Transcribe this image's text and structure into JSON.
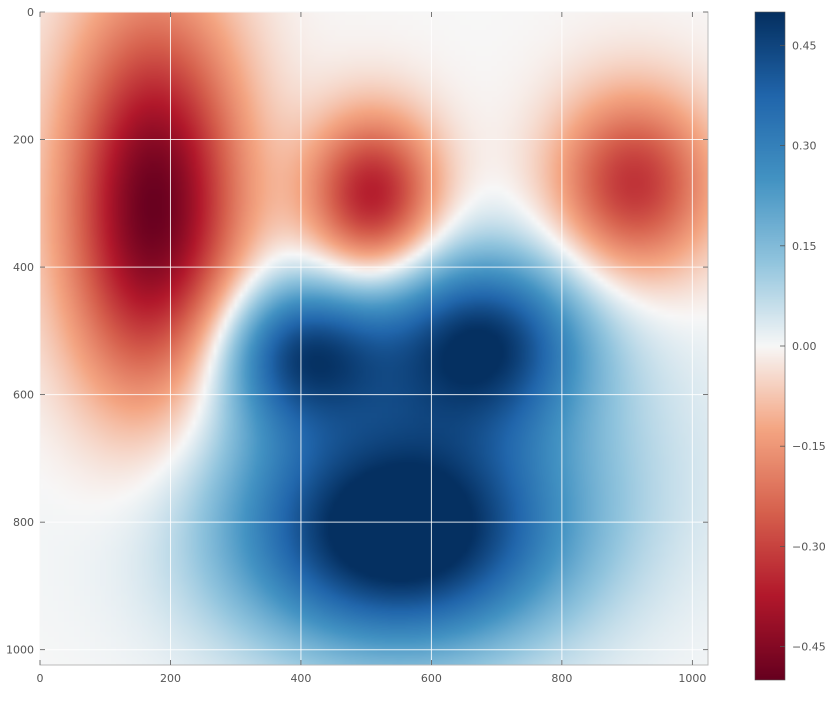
{
  "chart_data": {
    "type": "heatmap",
    "title": "",
    "xlabel": "",
    "ylabel": "",
    "xlim": [
      0,
      1024
    ],
    "ylim": [
      1024,
      0
    ],
    "x_ticks": [
      0,
      200,
      400,
      600,
      800,
      1000
    ],
    "y_ticks": [
      0,
      200,
      400,
      600,
      800,
      1000
    ],
    "grid": true,
    "colormap": "RdBu",
    "colorbar": {
      "min": -0.5,
      "max": 0.5,
      "ticks": [
        0.45,
        0.3,
        0.15,
        0.0,
        -0.15,
        -0.3,
        -0.45
      ],
      "tick_labels": [
        "0.45",
        "0.30",
        "0.15",
        "0.00",
        "−0.15",
        "−0.30",
        "−0.45"
      ]
    },
    "features": [
      {
        "kind": "min",
        "x": 175,
        "y": 310,
        "value": -0.5,
        "sx": 95,
        "sy": 220
      },
      {
        "kind": "min",
        "x": 510,
        "y": 290,
        "value": -0.38,
        "sx": 70,
        "sy": 90
      },
      {
        "kind": "min",
        "x": 910,
        "y": 270,
        "value": -0.33,
        "sx": 85,
        "sy": 100
      },
      {
        "kind": "max",
        "x": 400,
        "y": 530,
        "value": 0.36,
        "sx": 90,
        "sy": 80
      },
      {
        "kind": "max",
        "x": 680,
        "y": 510,
        "value": 0.4,
        "sx": 110,
        "sy": 95
      },
      {
        "kind": "max",
        "x": 550,
        "y": 840,
        "value": 0.42,
        "sx": 170,
        "sy": 120
      },
      {
        "kind": "max",
        "x": 560,
        "y": 700,
        "value": 0.24,
        "sx": 230,
        "sy": 160
      }
    ]
  }
}
